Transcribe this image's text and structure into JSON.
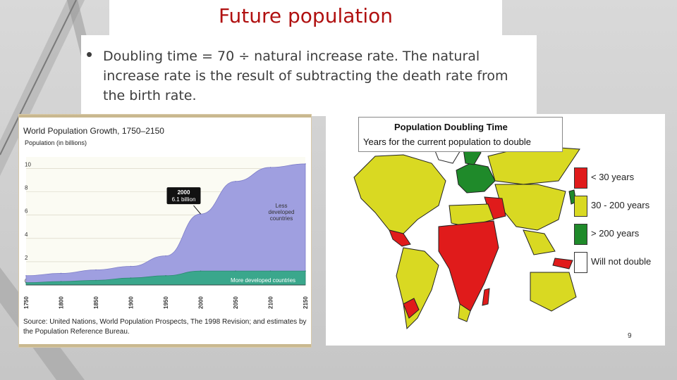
{
  "slide": {
    "title": "Future population",
    "bullet": "Doubling time = 70 ÷ natural increase rate. The natural increase rate is the result of subtracting the death rate from the birth rate.",
    "page_number": "9"
  },
  "colors": {
    "title": "#b01010",
    "less_developed": "#9f9fe0",
    "more_developed": "#3aa78c",
    "lt30": "#e01b1b",
    "mid": "#d9d922",
    "gt200": "#1f8a2a",
    "never": "#ffffff"
  },
  "chart_data": {
    "type": "area",
    "title": "World Population Growth, 1750–2150",
    "ylabel": "Population (in billions)",
    "ylim": [
      0,
      11
    ],
    "yticks": [
      "0",
      "2",
      "4",
      "6",
      "8",
      "10"
    ],
    "x": [
      1750,
      1800,
      1850,
      1900,
      1950,
      2000,
      2050,
      2100,
      2150
    ],
    "xticks": [
      "1750",
      "1800",
      "1850",
      "1900",
      "1950",
      "2000",
      "2050",
      "2100",
      "2150"
    ],
    "series": [
      {
        "name": "More developed countries",
        "values": [
          0.2,
          0.3,
          0.4,
          0.6,
          0.8,
          1.2,
          1.2,
          1.2,
          1.2
        ]
      },
      {
        "name": "Less developed countries",
        "values": [
          0.6,
          0.7,
          0.9,
          1.0,
          1.7,
          4.9,
          7.7,
          8.9,
          9.2
        ]
      }
    ],
    "legend": [
      "Less developed countries",
      "More developed countries"
    ],
    "annotation": {
      "line1": "2000",
      "line2": "6.1 billion",
      "x": 2000,
      "y": 6.1
    },
    "grid": true,
    "source": "Source: United Nations, World Population Prospects, The 1998 Revision; and estimates by the Population Reference Bureau."
  },
  "map": {
    "title": "Population Doubling Time",
    "subtitle": "Years for the current population to double",
    "legend": [
      {
        "label": "< 30 years",
        "color": "#e01b1b"
      },
      {
        "label": "30 - 200 years",
        "color": "#d9d922"
      },
      {
        "label": "> 200 years",
        "color": "#1f8a2a"
      },
      {
        "label": "Will not double",
        "color": "#ffffff"
      }
    ]
  }
}
